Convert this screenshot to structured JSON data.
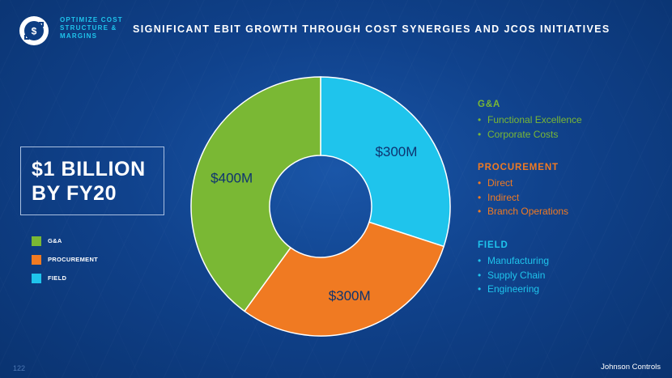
{
  "header": {
    "section_label": "OPTIMIZE COST STRUCTURE & MARGINS",
    "headline": "SIGNIFICANT EBIT GROWTH THROUGH COST SYNERGIES AND JCOS INITIATIVES",
    "logo_icon": "dollar-arrows-icon"
  },
  "callout": {
    "line1": "$1 BILLION",
    "line2": "BY FY20"
  },
  "legend": [
    {
      "label": "G&A",
      "color": "#7ab834"
    },
    {
      "label": "PROCUREMENT",
      "color": "#f07a22"
    },
    {
      "label": "FIELD",
      "color": "#1fc4ec"
    }
  ],
  "chart_data": {
    "type": "pie",
    "style": "donut",
    "title": "",
    "slices": [
      {
        "name": "FIELD",
        "value": 300,
        "label": "$300M",
        "color": "#1fc4ec"
      },
      {
        "name": "PROCUREMENT",
        "value": 300,
        "label": "$300M",
        "color": "#f07a22"
      },
      {
        "name": "G&A",
        "value": 400,
        "label": "$400M",
        "color": "#7ab834"
      }
    ],
    "unit": "$M",
    "total": 1000
  },
  "categories": [
    {
      "title": "G&A",
      "color": "#7ab834",
      "items": [
        "Functional Excellence",
        "Corporate Costs"
      ]
    },
    {
      "title": "PROCUREMENT",
      "color": "#f07a22",
      "items": [
        "Direct",
        "Indirect",
        "Branch Operations"
      ]
    },
    {
      "title": "FIELD",
      "color": "#1fc4ec",
      "items": [
        "Manufacturing",
        "Supply Chain",
        "Engineering"
      ]
    }
  ],
  "footer": {
    "page_number": "122",
    "brand": "Johnson Controls"
  }
}
